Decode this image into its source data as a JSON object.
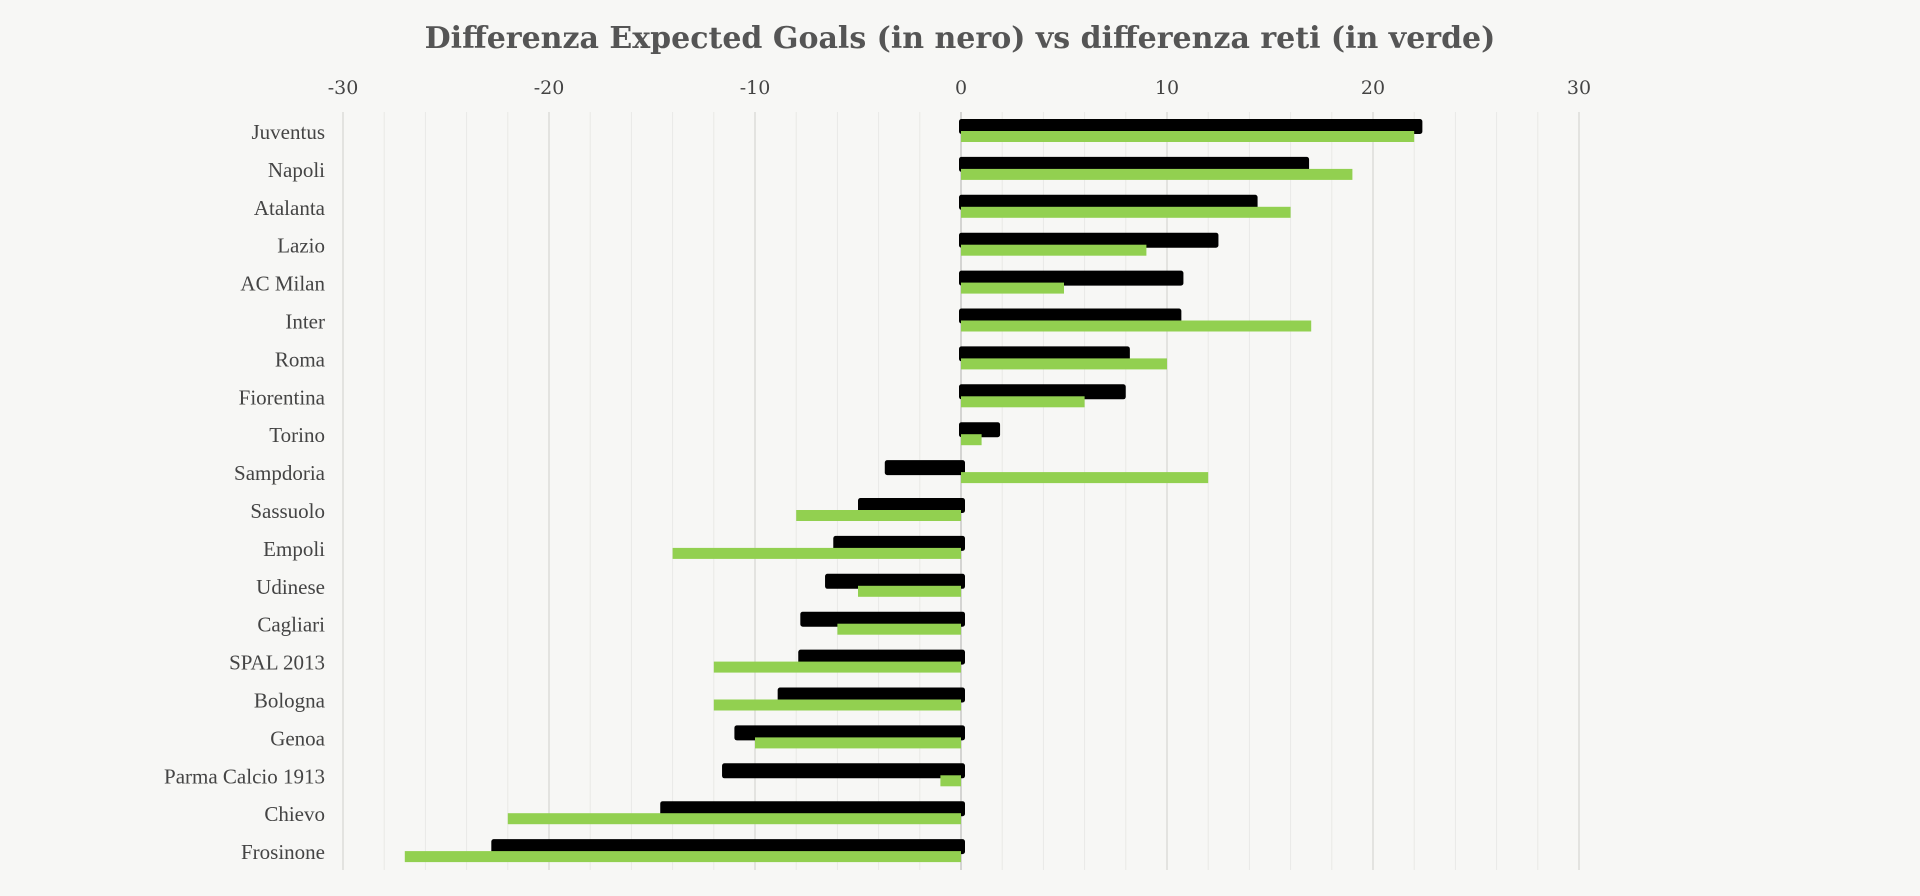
{
  "chart_data": {
    "type": "bar",
    "orientation": "horizontal",
    "title": "Differenza Expected Goals (in nero) vs differenza reti (in verde)",
    "xlim": [
      -30,
      30
    ],
    "xticks": [
      -30,
      -20,
      -10,
      0,
      10,
      20,
      30
    ],
    "tick_labels": [
      "-30",
      "-20",
      "-10",
      "0",
      "10",
      "20",
      "30"
    ],
    "categories": [
      "Juventus",
      "Napoli",
      "Atalanta",
      "Lazio",
      "AC Milan",
      "Inter",
      "Roma",
      "Fiorentina",
      "Torino",
      "Sampdoria",
      "Sassuolo",
      "Empoli",
      "Udinese",
      "Cagliari",
      "SPAL 2013",
      "Bologna",
      "Genoa",
      "Parma Calcio 1913",
      "Chievo",
      "Frosinone"
    ],
    "series": [
      {
        "color": "#000000",
        "values": [
          22.3,
          16.8,
          14.3,
          12.4,
          10.7,
          10.6,
          8.1,
          7.9,
          1.8,
          -3.7,
          -5.0,
          -6.2,
          -6.6,
          -7.8,
          -7.9,
          -8.9,
          -11.0,
          -11.6,
          -14.6,
          -22.8
        ]
      },
      {
        "color": "#92d050",
        "values": [
          22,
          19,
          16,
          9,
          5,
          17,
          10,
          6,
          1,
          12,
          -8,
          -14,
          -5,
          -6,
          -12,
          -12,
          -10,
          -1,
          -22,
          -27
        ]
      }
    ],
    "grid": true,
    "minor_grid": true,
    "axis_position": "top"
  }
}
